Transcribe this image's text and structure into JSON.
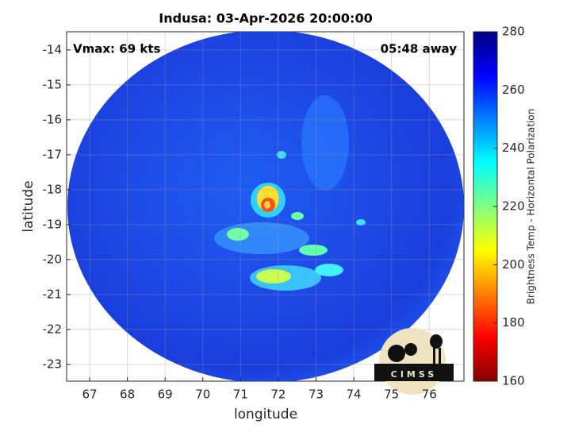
{
  "chart_data": {
    "type": "heatmap",
    "title": "Indusa: 03-Apr-2026 20:00:00",
    "annotations": [
      "Vmax: 69 kts",
      "05:48 away"
    ],
    "xlabel": "longitude",
    "ylabel": "latitude",
    "xlim": [
      66.39,
      76.92
    ],
    "xticks": [
      67,
      68,
      69,
      70,
      71,
      72,
      73,
      74,
      75,
      76
    ],
    "ylim": [
      -23.48,
      -13.48
    ],
    "yticks": [
      -23,
      -22,
      -21,
      -20,
      -19,
      -18,
      -17,
      -16,
      -15,
      -14
    ],
    "grid": true,
    "colorbar": {
      "label": "Brightness Temp - Horizontal Polarization",
      "colormap": "jet",
      "lim": [
        160,
        280
      ],
      "ticks": [
        160,
        180,
        200,
        220,
        240,
        260,
        280
      ]
    },
    "logo": "CIMSS"
  }
}
